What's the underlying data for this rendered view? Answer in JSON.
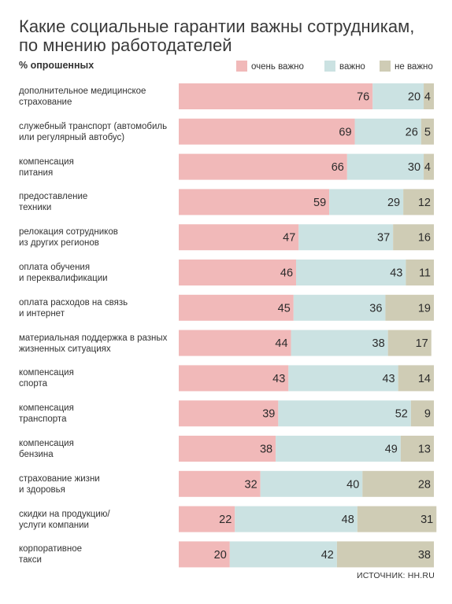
{
  "chart_data": {
    "type": "bar",
    "stacked": true,
    "orientation": "horizontal",
    "title_lines": [
      "Какие социальные гарантии важны сотрудникам,",
      "по мнению работодателей"
    ],
    "subtitle": "% опрошенных",
    "legend_position": "top-right",
    "xlim": [
      0,
      100
    ],
    "categories": [
      [
        "дополнительное медицинское",
        "страхование"
      ],
      [
        "служебный транспорт (автомобиль",
        "или регулярный автобус)"
      ],
      [
        "компенсация",
        "питания"
      ],
      [
        "предоставление",
        "техники"
      ],
      [
        "релокация сотрудников",
        "из других регионов"
      ],
      [
        "оплата обучения",
        "и переквалификации"
      ],
      [
        "оплата расходов на связь",
        "и интернет"
      ],
      [
        "материальная поддержка в разных",
        "жизненных ситуациях"
      ],
      [
        "компенсация",
        "спорта"
      ],
      [
        "компенсация",
        "транспорта"
      ],
      [
        "компенсация",
        "бензина"
      ],
      [
        "страхование жизни",
        "и здоровья"
      ],
      [
        "скидки на продукцию/",
        "услуги компании"
      ],
      [
        "корпоративное",
        "такси"
      ]
    ],
    "series": [
      {
        "name": "очень важно",
        "color": "#f1b9b9",
        "values": [
          76,
          69,
          66,
          59,
          47,
          46,
          45,
          44,
          43,
          39,
          38,
          32,
          22,
          20
        ]
      },
      {
        "name": "важно",
        "color": "#cbe2e2",
        "values": [
          20,
          26,
          30,
          29,
          37,
          43,
          36,
          38,
          43,
          52,
          49,
          40,
          48,
          42
        ]
      },
      {
        "name": "не важно",
        "color": "#cfccb5",
        "values": [
          4,
          5,
          4,
          12,
          16,
          11,
          19,
          17,
          14,
          9,
          13,
          28,
          31,
          38
        ]
      }
    ],
    "source": "ИСТОЧНИК: HH.RU"
  }
}
